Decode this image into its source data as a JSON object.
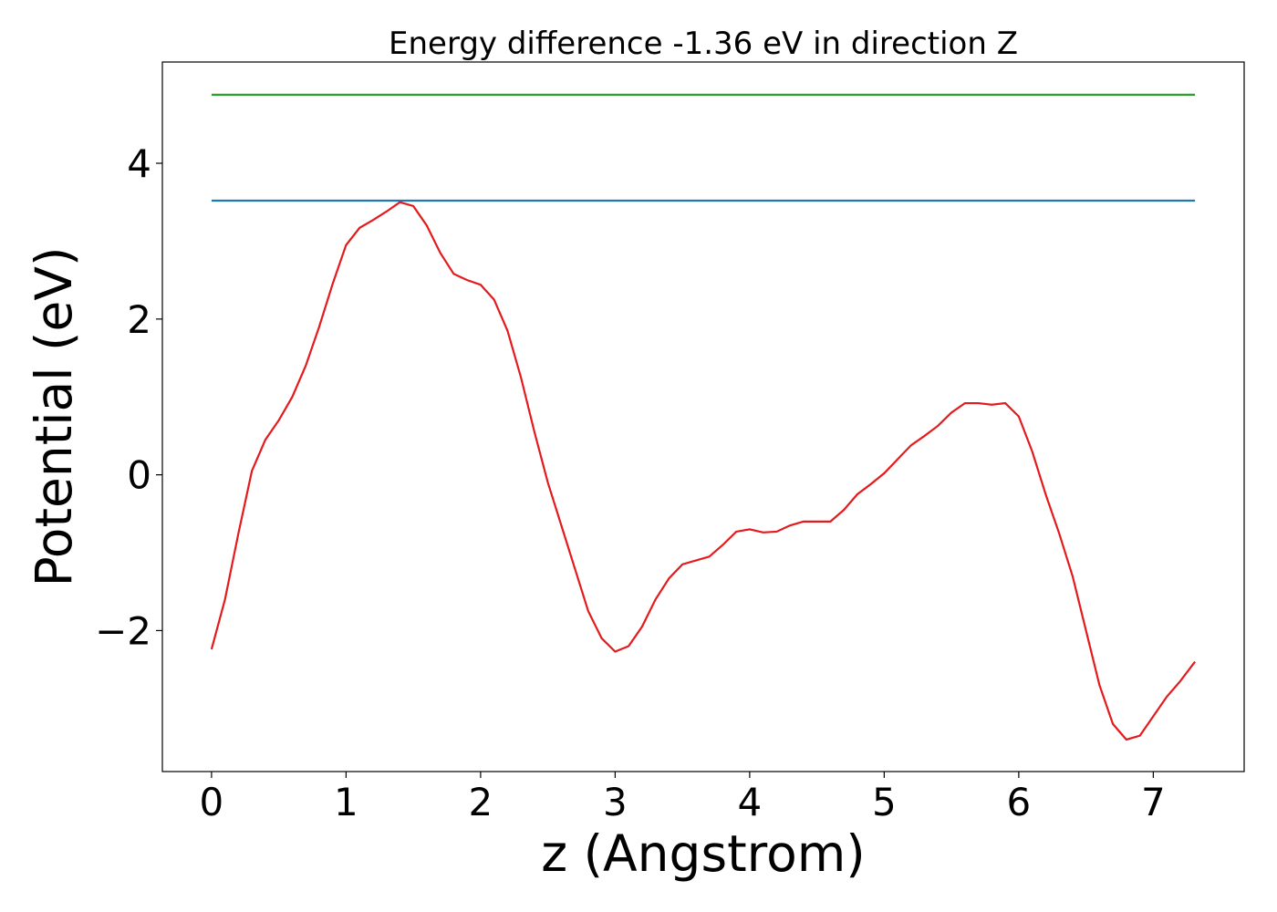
{
  "chart_data": {
    "type": "line",
    "title": "Energy difference -1.36 eV in direction Z",
    "xlabel": "z (Angstrom)",
    "ylabel": "Potential (eV)",
    "xlim": [
      -0.3655,
      7.6755
    ],
    "ylim": [
      -3.81,
      5.3
    ],
    "xticks": [
      0,
      1,
      2,
      3,
      4,
      5,
      6,
      7
    ],
    "yticks": [
      {
        "value": -2,
        "label": "−2"
      },
      0,
      2,
      4
    ],
    "series": [
      {
        "color": "#2ca02c",
        "x": [
          0,
          7.31
        ],
        "values": [
          4.88,
          4.88
        ]
      },
      {
        "color": "#1f77b4",
        "x": [
          0,
          7.31
        ],
        "values": [
          3.52,
          3.52
        ]
      },
      {
        "color": "#e41a1c",
        "x": [
          0,
          0.1,
          0.2,
          0.3,
          0.4,
          0.5,
          0.6,
          0.7,
          0.8,
          0.9,
          1.0,
          1.1,
          1.2,
          1.3,
          1.4,
          1.5,
          1.6,
          1.7,
          1.8,
          1.9,
          2.0,
          2.1,
          2.2,
          2.3,
          2.4,
          2.5,
          2.6,
          2.7,
          2.8,
          2.9,
          3.0,
          3.1,
          3.2,
          3.3,
          3.4,
          3.5,
          3.6,
          3.7,
          3.8,
          3.9,
          4.0,
          4.1,
          4.2,
          4.3,
          4.4,
          4.5,
          4.6,
          4.7,
          4.8,
          4.9,
          5.0,
          5.1,
          5.2,
          5.3,
          5.4,
          5.5,
          5.6,
          5.7,
          5.8,
          5.9,
          6.0,
          6.1,
          6.2,
          6.3,
          6.4,
          6.5,
          6.6,
          6.7,
          6.8,
          6.9,
          7.0,
          7.1,
          7.2,
          7.31
        ],
        "values": [
          -2.24,
          -1.6,
          -0.75,
          0.05,
          0.45,
          0.7,
          1.0,
          1.4,
          1.9,
          2.45,
          2.95,
          3.17,
          3.27,
          3.38,
          3.5,
          3.45,
          3.2,
          2.85,
          2.58,
          2.5,
          2.44,
          2.25,
          1.85,
          1.25,
          0.55,
          -0.1,
          -0.65,
          -1.2,
          -1.75,
          -2.1,
          -2.27,
          -2.2,
          -1.95,
          -1.6,
          -1.33,
          -1.15,
          -1.1,
          -1.05,
          -0.9,
          -0.73,
          -0.7,
          -0.74,
          -0.73,
          -0.65,
          -0.6,
          -0.6,
          -0.6,
          -0.45,
          -0.25,
          -0.12,
          0.02,
          0.2,
          0.38,
          0.5,
          0.63,
          0.8,
          0.92,
          0.92,
          0.9,
          0.92,
          0.75,
          0.3,
          -0.25,
          -0.75,
          -1.3,
          -2.0,
          -2.7,
          -3.2,
          -3.4,
          -3.35,
          -3.1,
          -2.85,
          -2.65,
          -2.4
        ]
      }
    ]
  }
}
